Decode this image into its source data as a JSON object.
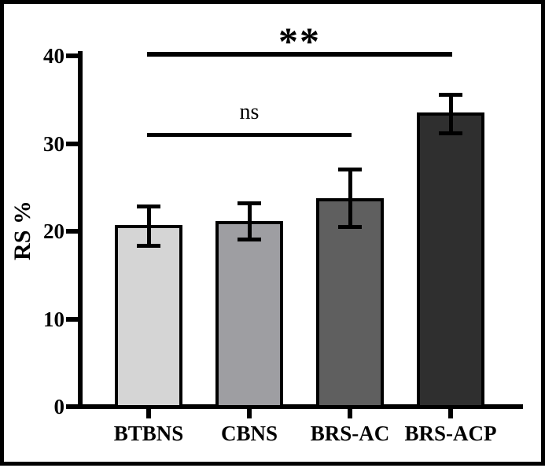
{
  "figure": {
    "background_color": "#ffffff",
    "frame_color": "#000000"
  },
  "chart_data": {
    "type": "bar",
    "title": "",
    "xlabel": "",
    "ylabel": "RS %",
    "ylim": [
      0,
      40
    ],
    "yticks": [
      0,
      10,
      20,
      30,
      40
    ],
    "grid": false,
    "legend": "none",
    "categories": [
      "BTBNS",
      "CBNS",
      "BRS-AC",
      "BRS-ACP"
    ],
    "values": [
      20.5,
      21.0,
      23.6,
      33.4
    ],
    "errors_upper": [
      2.4,
      2.2,
      3.5,
      2.2
    ],
    "errors_lower": [
      2.1,
      1.9,
      3.1,
      2.2
    ],
    "bar_colors": [
      "#d5d5d5",
      "#9e9ea2",
      "#5f5f5f",
      "#2f2f2f"
    ],
    "bar_border_color": "#000000",
    "axis_color": "#000000",
    "annotations": [
      {
        "label": "ns",
        "from": "BTBNS",
        "to": "BRS-AC",
        "y": 30.9
      },
      {
        "label": "**",
        "from": "BTBNS",
        "to": "BRS-ACP",
        "y": 40.2
      }
    ]
  }
}
